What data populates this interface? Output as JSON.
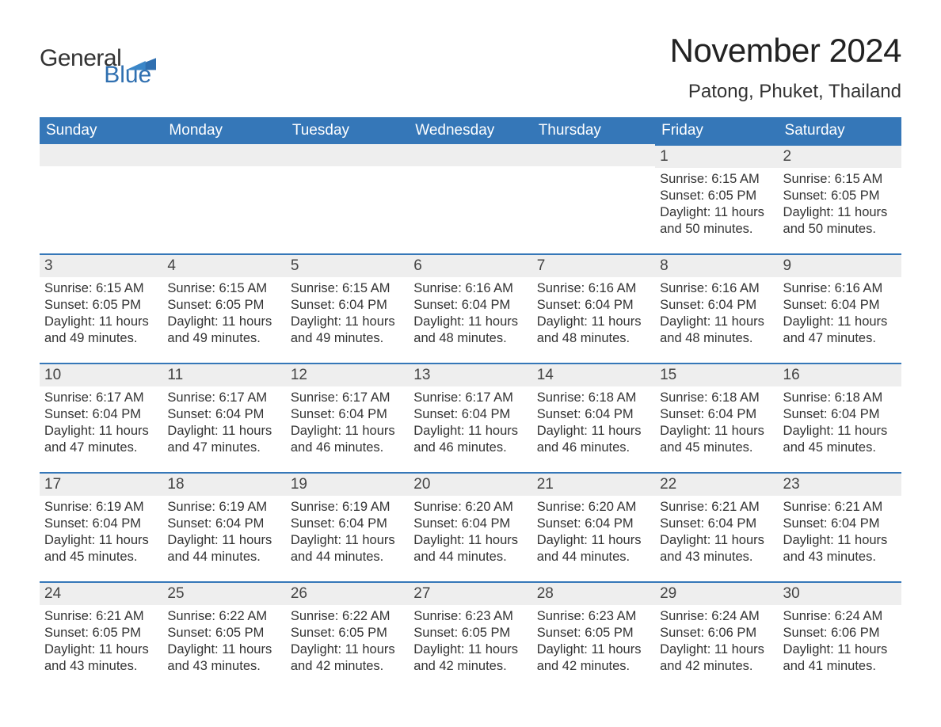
{
  "logo": {
    "text1": "General",
    "text2": "Blue",
    "brand_color": "#2f6fb0"
  },
  "title": "November 2024",
  "location": "Patong, Phuket, Thailand",
  "colors": {
    "header_bg": "#3577b8",
    "header_text": "#ffffff",
    "daybar_bg": "#eeeeee",
    "daybar_border": "#3577b8",
    "body_text": "#333333",
    "page_bg": "#ffffff"
  },
  "fonts": {
    "title_size_pt": 32,
    "location_size_pt": 18,
    "header_size_pt": 14,
    "body_size_pt": 12
  },
  "layout": {
    "columns": 7,
    "rows": 5,
    "aspect": "1188x918"
  },
  "day_headers": [
    "Sunday",
    "Monday",
    "Tuesday",
    "Wednesday",
    "Thursday",
    "Friday",
    "Saturday"
  ],
  "weeks": [
    [
      null,
      null,
      null,
      null,
      null,
      {
        "n": "1",
        "sunrise": "Sunrise: 6:15 AM",
        "sunset": "Sunset: 6:05 PM",
        "day1": "Daylight: 11 hours",
        "day2": "and 50 minutes."
      },
      {
        "n": "2",
        "sunrise": "Sunrise: 6:15 AM",
        "sunset": "Sunset: 6:05 PM",
        "day1": "Daylight: 11 hours",
        "day2": "and 50 minutes."
      }
    ],
    [
      {
        "n": "3",
        "sunrise": "Sunrise: 6:15 AM",
        "sunset": "Sunset: 6:05 PM",
        "day1": "Daylight: 11 hours",
        "day2": "and 49 minutes."
      },
      {
        "n": "4",
        "sunrise": "Sunrise: 6:15 AM",
        "sunset": "Sunset: 6:05 PM",
        "day1": "Daylight: 11 hours",
        "day2": "and 49 minutes."
      },
      {
        "n": "5",
        "sunrise": "Sunrise: 6:15 AM",
        "sunset": "Sunset: 6:04 PM",
        "day1": "Daylight: 11 hours",
        "day2": "and 49 minutes."
      },
      {
        "n": "6",
        "sunrise": "Sunrise: 6:16 AM",
        "sunset": "Sunset: 6:04 PM",
        "day1": "Daylight: 11 hours",
        "day2": "and 48 minutes."
      },
      {
        "n": "7",
        "sunrise": "Sunrise: 6:16 AM",
        "sunset": "Sunset: 6:04 PM",
        "day1": "Daylight: 11 hours",
        "day2": "and 48 minutes."
      },
      {
        "n": "8",
        "sunrise": "Sunrise: 6:16 AM",
        "sunset": "Sunset: 6:04 PM",
        "day1": "Daylight: 11 hours",
        "day2": "and 48 minutes."
      },
      {
        "n": "9",
        "sunrise": "Sunrise: 6:16 AM",
        "sunset": "Sunset: 6:04 PM",
        "day1": "Daylight: 11 hours",
        "day2": "and 47 minutes."
      }
    ],
    [
      {
        "n": "10",
        "sunrise": "Sunrise: 6:17 AM",
        "sunset": "Sunset: 6:04 PM",
        "day1": "Daylight: 11 hours",
        "day2": "and 47 minutes."
      },
      {
        "n": "11",
        "sunrise": "Sunrise: 6:17 AM",
        "sunset": "Sunset: 6:04 PM",
        "day1": "Daylight: 11 hours",
        "day2": "and 47 minutes."
      },
      {
        "n": "12",
        "sunrise": "Sunrise: 6:17 AM",
        "sunset": "Sunset: 6:04 PM",
        "day1": "Daylight: 11 hours",
        "day2": "and 46 minutes."
      },
      {
        "n": "13",
        "sunrise": "Sunrise: 6:17 AM",
        "sunset": "Sunset: 6:04 PM",
        "day1": "Daylight: 11 hours",
        "day2": "and 46 minutes."
      },
      {
        "n": "14",
        "sunrise": "Sunrise: 6:18 AM",
        "sunset": "Sunset: 6:04 PM",
        "day1": "Daylight: 11 hours",
        "day2": "and 46 minutes."
      },
      {
        "n": "15",
        "sunrise": "Sunrise: 6:18 AM",
        "sunset": "Sunset: 6:04 PM",
        "day1": "Daylight: 11 hours",
        "day2": "and 45 minutes."
      },
      {
        "n": "16",
        "sunrise": "Sunrise: 6:18 AM",
        "sunset": "Sunset: 6:04 PM",
        "day1": "Daylight: 11 hours",
        "day2": "and 45 minutes."
      }
    ],
    [
      {
        "n": "17",
        "sunrise": "Sunrise: 6:19 AM",
        "sunset": "Sunset: 6:04 PM",
        "day1": "Daylight: 11 hours",
        "day2": "and 45 minutes."
      },
      {
        "n": "18",
        "sunrise": "Sunrise: 6:19 AM",
        "sunset": "Sunset: 6:04 PM",
        "day1": "Daylight: 11 hours",
        "day2": "and 44 minutes."
      },
      {
        "n": "19",
        "sunrise": "Sunrise: 6:19 AM",
        "sunset": "Sunset: 6:04 PM",
        "day1": "Daylight: 11 hours",
        "day2": "and 44 minutes."
      },
      {
        "n": "20",
        "sunrise": "Sunrise: 6:20 AM",
        "sunset": "Sunset: 6:04 PM",
        "day1": "Daylight: 11 hours",
        "day2": "and 44 minutes."
      },
      {
        "n": "21",
        "sunrise": "Sunrise: 6:20 AM",
        "sunset": "Sunset: 6:04 PM",
        "day1": "Daylight: 11 hours",
        "day2": "and 44 minutes."
      },
      {
        "n": "22",
        "sunrise": "Sunrise: 6:21 AM",
        "sunset": "Sunset: 6:04 PM",
        "day1": "Daylight: 11 hours",
        "day2": "and 43 minutes."
      },
      {
        "n": "23",
        "sunrise": "Sunrise: 6:21 AM",
        "sunset": "Sunset: 6:04 PM",
        "day1": "Daylight: 11 hours",
        "day2": "and 43 minutes."
      }
    ],
    [
      {
        "n": "24",
        "sunrise": "Sunrise: 6:21 AM",
        "sunset": "Sunset: 6:05 PM",
        "day1": "Daylight: 11 hours",
        "day2": "and 43 minutes."
      },
      {
        "n": "25",
        "sunrise": "Sunrise: 6:22 AM",
        "sunset": "Sunset: 6:05 PM",
        "day1": "Daylight: 11 hours",
        "day2": "and 43 minutes."
      },
      {
        "n": "26",
        "sunrise": "Sunrise: 6:22 AM",
        "sunset": "Sunset: 6:05 PM",
        "day1": "Daylight: 11 hours",
        "day2": "and 42 minutes."
      },
      {
        "n": "27",
        "sunrise": "Sunrise: 6:23 AM",
        "sunset": "Sunset: 6:05 PM",
        "day1": "Daylight: 11 hours",
        "day2": "and 42 minutes."
      },
      {
        "n": "28",
        "sunrise": "Sunrise: 6:23 AM",
        "sunset": "Sunset: 6:05 PM",
        "day1": "Daylight: 11 hours",
        "day2": "and 42 minutes."
      },
      {
        "n": "29",
        "sunrise": "Sunrise: 6:24 AM",
        "sunset": "Sunset: 6:06 PM",
        "day1": "Daylight: 11 hours",
        "day2": "and 42 minutes."
      },
      {
        "n": "30",
        "sunrise": "Sunrise: 6:24 AM",
        "sunset": "Sunset: 6:06 PM",
        "day1": "Daylight: 11 hours",
        "day2": "and 41 minutes."
      }
    ]
  ]
}
